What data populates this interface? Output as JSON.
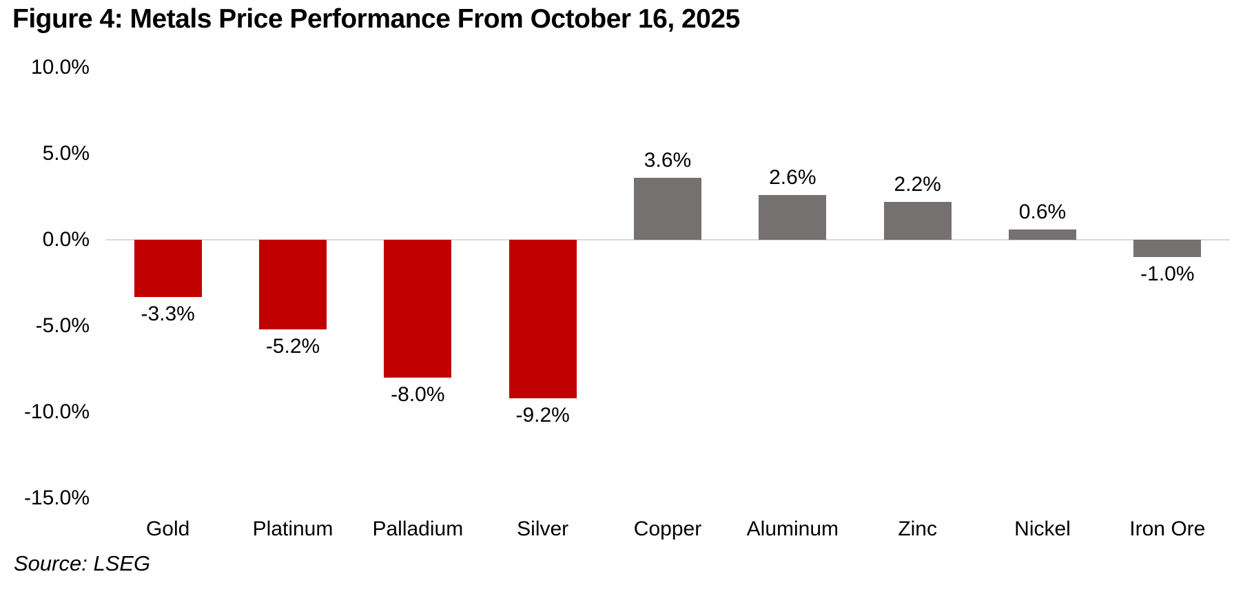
{
  "chart_data": {
    "type": "bar",
    "title": "Figure 4: Metals Price Performance From October 16, 2025",
    "categories": [
      "Gold",
      "Platinum",
      "Palladium",
      "Silver",
      "Copper",
      "Aluminum",
      "Zinc",
      "Nickel",
      "Iron Ore"
    ],
    "values": [
      -3.3,
      -5.2,
      -8.0,
      -9.2,
      3.6,
      2.6,
      2.2,
      0.6,
      -1.0
    ],
    "value_labels": [
      "-3.3%",
      "-5.2%",
      "-8.0%",
      "-9.2%",
      "3.6%",
      "2.6%",
      "2.2%",
      "0.6%",
      "-1.0%"
    ],
    "bar_colors": [
      "#C00000",
      "#C00000",
      "#C00000",
      "#C00000",
      "#767171",
      "#767171",
      "#767171",
      "#767171",
      "#767171"
    ],
    "y_ticks": [
      {
        "label": "10.0%",
        "value": 10
      },
      {
        "label": "5.0%",
        "value": 5
      },
      {
        "label": "0.0%",
        "value": 0
      },
      {
        "label": "-5.0%",
        "value": -5
      },
      {
        "label": "-10.0%",
        "value": -10
      },
      {
        "label": "-15.0%",
        "value": -15
      }
    ],
    "ylim": [
      -15,
      10
    ],
    "xlabel": "",
    "ylabel": "",
    "grid": false,
    "legend": "none",
    "axis_line_color": "#D9D9D9",
    "negative_precious_color": "#C00000",
    "base_metal_color": "#767171",
    "source": "Source: LSEG"
  }
}
